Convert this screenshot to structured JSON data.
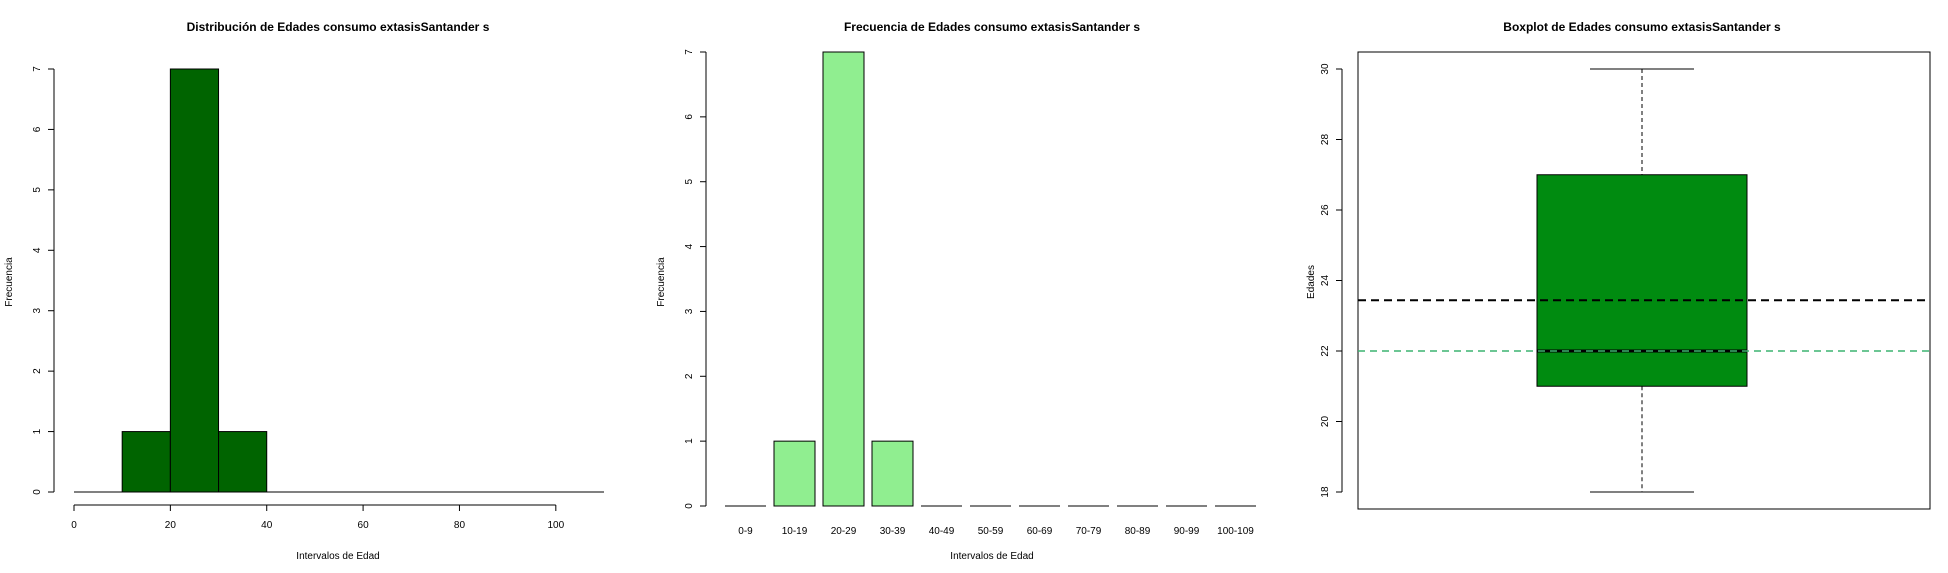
{
  "chart_data": [
    {
      "type": "bar",
      "subtype": "histogram",
      "title": "Distribución de Edades consumo extasisSantander s",
      "xlabel": "Intervalos de Edad",
      "ylabel": "Frecuencia",
      "bins": [
        {
          "x0": 10,
          "x1": 20,
          "count": 1
        },
        {
          "x0": 20,
          "x1": 30,
          "count": 7
        },
        {
          "x0": 30,
          "x1": 40,
          "count": 1
        }
      ],
      "xlim": [
        0,
        110
      ],
      "ylim": [
        0,
        7
      ],
      "xticks": [
        "0",
        "20",
        "40",
        "60",
        "80",
        "100"
      ],
      "yticks": [
        "0",
        "1",
        "2",
        "3",
        "4",
        "5",
        "6",
        "7"
      ],
      "colors": {
        "bar": "#006400",
        "outline": "#000000"
      }
    },
    {
      "type": "bar",
      "title": "Frecuencia de Edades consumo extasisSantander s",
      "xlabel": "Intervalos de Edad",
      "ylabel": "Frecuencia",
      "categories": [
        "0-9",
        "10-19",
        "20-29",
        "30-39",
        "40-49",
        "50-59",
        "60-69",
        "70-79",
        "80-89",
        "90-99",
        "100-109"
      ],
      "values": [
        0,
        1,
        7,
        1,
        0,
        0,
        0,
        0,
        0,
        0,
        0
      ],
      "ylim": [
        0,
        7
      ],
      "yticks": [
        "0",
        "1",
        "2",
        "3",
        "4",
        "5",
        "6",
        "7"
      ],
      "colors": {
        "bar": "#90EE90",
        "outline": "#000000"
      }
    },
    {
      "type": "boxplot",
      "title": "Boxplot de Edades consumo extasisSantander s",
      "ylabel": "Edades",
      "stats": {
        "min": 18,
        "q1": 21,
        "median": 22,
        "q3": 27,
        "max": 30
      },
      "mean_line": 23.44,
      "median_line": 22,
      "ylim": [
        17.5,
        30.5
      ],
      "yticks": [
        "18",
        "20",
        "22",
        "24",
        "26",
        "28",
        "30"
      ],
      "colors": {
        "box": "#008B10",
        "mean_line": "#000000",
        "median_line": "#3CB371"
      }
    }
  ]
}
